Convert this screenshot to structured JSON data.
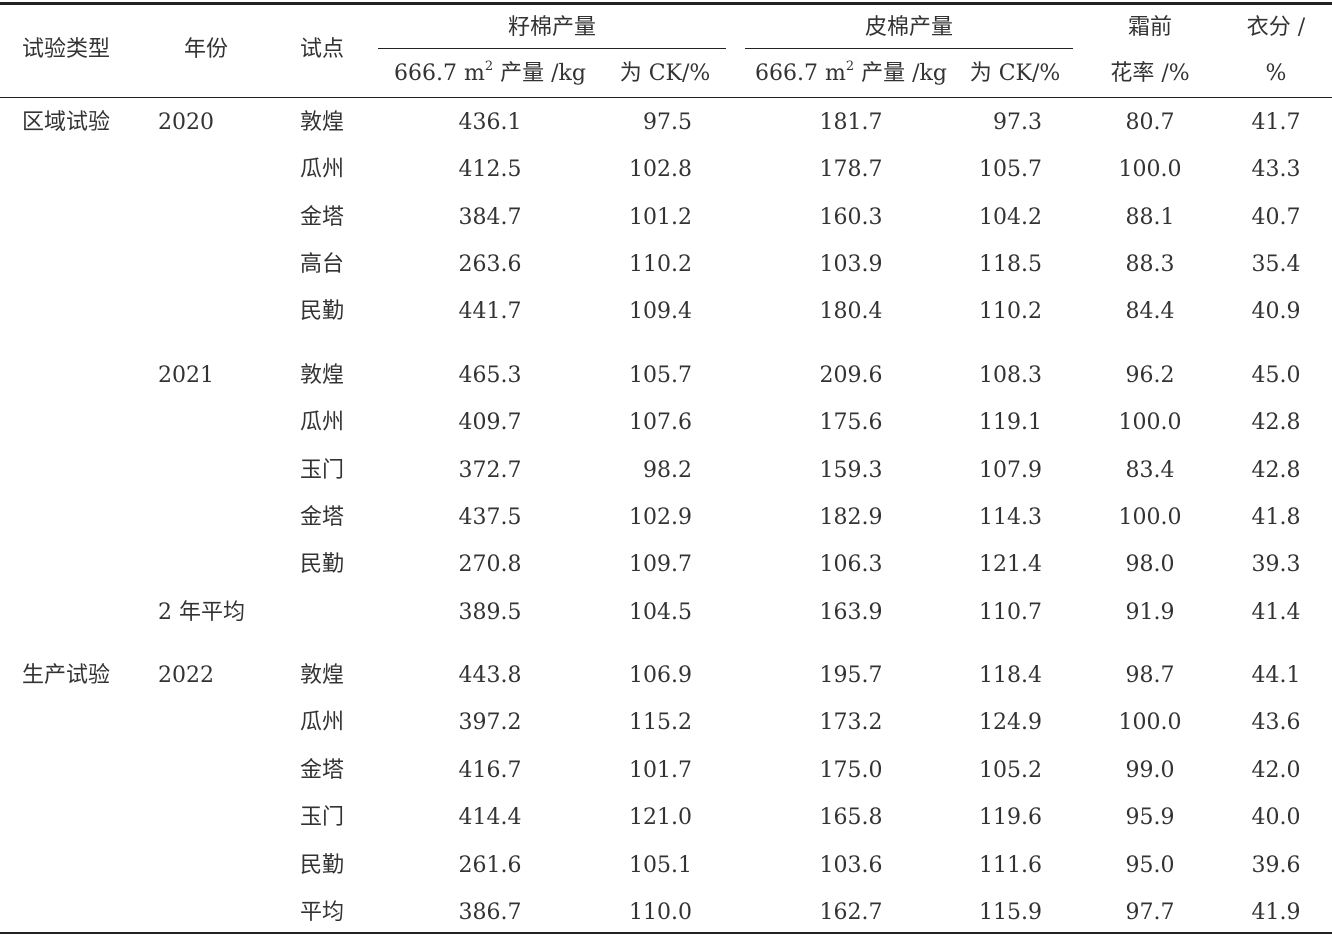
{
  "headers": {
    "trial_type": "试验类型",
    "year": "年份",
    "site": "试点",
    "seed_group": "籽棉产量",
    "lint_group": "皮棉产量",
    "seed_yield_pre": "666.7 m",
    "seed_yield_sup": "2",
    "seed_yield_post": " 产量 /kg",
    "seed_ck": "为 CK/%",
    "lint_yield_pre": "666.7 m",
    "lint_yield_sup": "2",
    "lint_yield_post": " 产量 /kg",
    "lint_ck": "为 CK/%",
    "frost_line1": "霜前",
    "frost_line2": "花率 /%",
    "lint_pct_line1": "衣分 /",
    "lint_pct_line2": "%"
  },
  "rows": [
    {
      "type": "区域试验",
      "year": "2020",
      "site": "敦煌",
      "seed": "436.1",
      "seed_ck": "97.5",
      "lint": "181.7",
      "lint_ck": "97.3",
      "frost": "80.7",
      "pct": "41.7"
    },
    {
      "type": "",
      "year": "",
      "site": "瓜州",
      "seed": "412.5",
      "seed_ck": "102.8",
      "lint": "178.7",
      "lint_ck": "105.7",
      "frost": "100.0",
      "pct": "43.3"
    },
    {
      "type": "",
      "year": "",
      "site": "金塔",
      "seed": "384.7",
      "seed_ck": "101.2",
      "lint": "160.3",
      "lint_ck": "104.2",
      "frost": "88.1",
      "pct": "40.7"
    },
    {
      "type": "",
      "year": "",
      "site": "高台",
      "seed": "263.6",
      "seed_ck": "110.2",
      "lint": "103.9",
      "lint_ck": "118.5",
      "frost": "88.3",
      "pct": "35.4"
    },
    {
      "type": "",
      "year": "",
      "site": "民勤",
      "seed": "441.7",
      "seed_ck": "109.4",
      "lint": "180.4",
      "lint_ck": "110.2",
      "frost": "84.4",
      "pct": "40.9"
    },
    {
      "type": "",
      "year": "2021",
      "site": "敦煌",
      "seed": "465.3",
      "seed_ck": "105.7",
      "lint": "209.6",
      "lint_ck": "108.3",
      "frost": "96.2",
      "pct": "45.0"
    },
    {
      "type": "",
      "year": "",
      "site": "瓜州",
      "seed": "409.7",
      "seed_ck": "107.6",
      "lint": "175.6",
      "lint_ck": "119.1",
      "frost": "100.0",
      "pct": "42.8"
    },
    {
      "type": "",
      "year": "",
      "site": "玉门",
      "seed": "372.7",
      "seed_ck": "98.2",
      "lint": "159.3",
      "lint_ck": "107.9",
      "frost": "83.4",
      "pct": "42.8"
    },
    {
      "type": "",
      "year": "",
      "site": "金塔",
      "seed": "437.5",
      "seed_ck": "102.9",
      "lint": "182.9",
      "lint_ck": "114.3",
      "frost": "100.0",
      "pct": "41.8"
    },
    {
      "type": "",
      "year": "",
      "site": "民勤",
      "seed": "270.8",
      "seed_ck": "109.7",
      "lint": "106.3",
      "lint_ck": "121.4",
      "frost": "98.0",
      "pct": "39.3"
    },
    {
      "type": "",
      "year": "2 年平均",
      "site": "",
      "seed": "389.5",
      "seed_ck": "104.5",
      "lint": "163.9",
      "lint_ck": "110.7",
      "frost": "91.9",
      "pct": "41.4"
    },
    {
      "type": "生产试验",
      "year": "2022",
      "site": "敦煌",
      "seed": "443.8",
      "seed_ck": "106.9",
      "lint": "195.7",
      "lint_ck": "118.4",
      "frost": "98.7",
      "pct": "44.1"
    },
    {
      "type": "",
      "year": "",
      "site": "瓜州",
      "seed": "397.2",
      "seed_ck": "115.2",
      "lint": "173.2",
      "lint_ck": "124.9",
      "frost": "100.0",
      "pct": "43.6"
    },
    {
      "type": "",
      "year": "",
      "site": "金塔",
      "seed": "416.7",
      "seed_ck": "101.7",
      "lint": "175.0",
      "lint_ck": "105.2",
      "frost": "99.0",
      "pct": "42.0"
    },
    {
      "type": "",
      "year": "",
      "site": "玉门",
      "seed": "414.4",
      "seed_ck": "121.0",
      "lint": "165.8",
      "lint_ck": "119.6",
      "frost": "95.9",
      "pct": "40.0"
    },
    {
      "type": "",
      "year": "",
      "site": "民勤",
      "seed": "261.6",
      "seed_ck": "105.1",
      "lint": "103.6",
      "lint_ck": "111.6",
      "frost": "95.0",
      "pct": "39.6"
    },
    {
      "type": "",
      "year": "",
      "site": "平均",
      "seed": "386.7",
      "seed_ck": "110.0",
      "lint": "162.7",
      "lint_ck": "115.9",
      "frost": "97.7",
      "pct": "41.9"
    }
  ]
}
